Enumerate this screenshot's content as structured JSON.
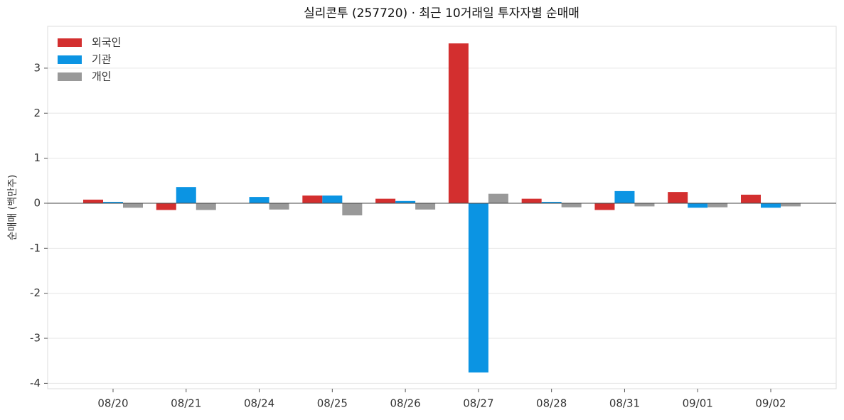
{
  "chart_data": {
    "type": "bar",
    "title": "실리콘투 (257720) · 최근 10거래일 투자자별 순매매",
    "y_label": "순매매 (백만주)",
    "categories": [
      "08/20",
      "08/21",
      "08/24",
      "08/25",
      "08/26",
      "08/27",
      "08/28",
      "08/31",
      "09/01",
      "09/02"
    ],
    "series": [
      {
        "name": "외국인",
        "color": "#d32f2f",
        "values": [
          0.08,
          -0.15,
          0,
          0.17,
          0.1,
          3.55,
          0.1,
          -0.15,
          0.25,
          0.19
        ]
      },
      {
        "name": "기관",
        "color": "#0b94e3",
        "values": [
          0.03,
          0.36,
          0.14,
          0.17,
          0.05,
          -3.76,
          0.03,
          0.27,
          -0.1,
          -0.1
        ]
      },
      {
        "name": "개인",
        "color": "#999999",
        "values": [
          -0.1,
          -0.15,
          -0.14,
          -0.27,
          -0.14,
          0.21,
          -0.09,
          -0.07,
          -0.09,
          -0.07
        ]
      }
    ],
    "ylim": [
      -4.12,
      3.93
    ],
    "yticks": [
      -4,
      -3,
      -2,
      -1,
      0,
      1,
      2,
      3
    ],
    "grid": true,
    "legend": "upper-left"
  }
}
